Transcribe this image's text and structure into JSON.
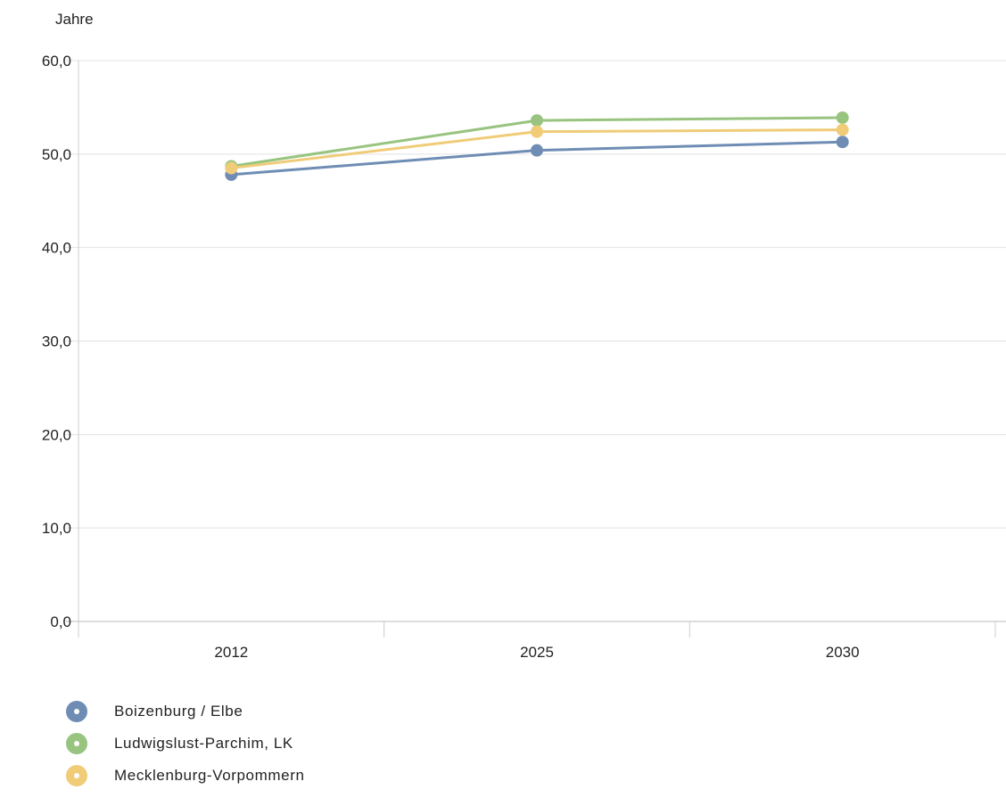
{
  "chart_data": {
    "type": "line",
    "title": "",
    "ylabel": "Jahre",
    "xlabel": "",
    "categories": [
      "2012",
      "2025",
      "2030"
    ],
    "ylim": [
      0,
      60
    ],
    "yticks": [
      0,
      10,
      20,
      30,
      40,
      50,
      60
    ],
    "ytick_labels": [
      "0,0",
      "10,0",
      "20,0",
      "30,0",
      "40,0",
      "50,0",
      "60,0"
    ],
    "grid": true,
    "legend_position": "bottom-left",
    "series": [
      {
        "name": "Boizenburg / Elbe",
        "color": "#6f8db4",
        "values": [
          47.8,
          50.4,
          51.3
        ]
      },
      {
        "name": "Ludwigslust-Parchim, LK",
        "color": "#98c47f",
        "values": [
          48.7,
          53.6,
          53.9
        ]
      },
      {
        "name": "Mecklenburg-Vorpommern",
        "color": "#f0cc78",
        "values": [
          48.5,
          52.4,
          52.6
        ]
      }
    ]
  }
}
